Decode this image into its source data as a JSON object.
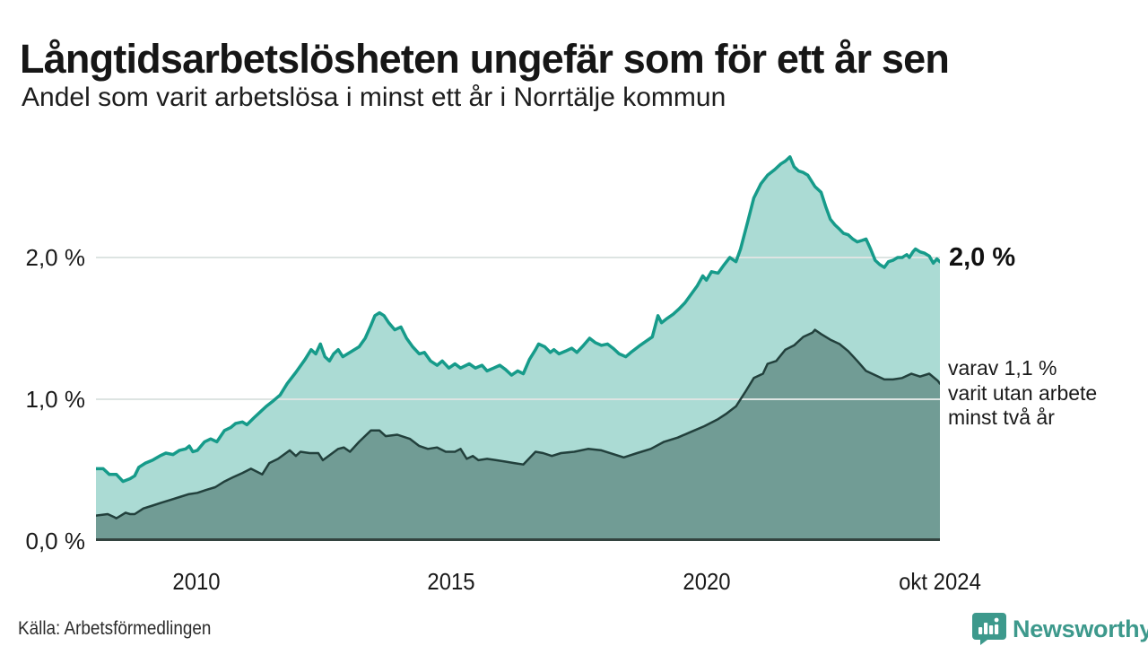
{
  "header": {
    "title": "Långtidsarbetslösheten ungefär som för ett år sen",
    "subtitle": "Andel som varit arbetslösa i minst ett år i Norrtälje kommun"
  },
  "chart_data": {
    "type": "area",
    "title": "Långtidsarbetslösheten ungefär som för ett år sen",
    "subtitle": "Andel som varit arbetslösa i minst ett år i Norrtälje kommun",
    "unit": "%",
    "x_domain": [
      2008.03,
      2024.58
    ],
    "ylim": [
      0,
      2.772
    ],
    "grid": "horizontal",
    "legend_position": "none",
    "yticks": [
      {
        "v": 2,
        "label": "2,0 %"
      },
      {
        "v": 1,
        "label": "1,0 %"
      },
      {
        "v": 0,
        "label": "0,0 %"
      }
    ],
    "xticks": [
      {
        "t": 2010,
        "label": "2010"
      },
      {
        "t": 2015,
        "label": "2015"
      },
      {
        "t": 2020,
        "label": "2020"
      },
      {
        "t": 2024.58,
        "label": "okt 2024"
      }
    ],
    "series": [
      {
        "name": "Andel arbetslösa minst ett år",
        "line_color": "#169b8a",
        "fill_color": "rgba(22,154,137,0.36)",
        "line_width": 3.5,
        "end_value": "2,0 %",
        "points": [
          [
            2008.03,
            0.51
          ],
          [
            2008.17,
            0.51
          ],
          [
            2008.29,
            0.47
          ],
          [
            2008.43,
            0.47
          ],
          [
            2008.56,
            0.42
          ],
          [
            2008.7,
            0.44
          ],
          [
            2008.79,
            0.46
          ],
          [
            2008.87,
            0.52
          ],
          [
            2009.0,
            0.55
          ],
          [
            2009.14,
            0.57
          ],
          [
            2009.28,
            0.6
          ],
          [
            2009.4,
            0.62
          ],
          [
            2009.54,
            0.61
          ],
          [
            2009.67,
            0.64
          ],
          [
            2009.79,
            0.65
          ],
          [
            2009.86,
            0.67
          ],
          [
            2009.93,
            0.63
          ],
          [
            2010.02,
            0.64
          ],
          [
            2010.16,
            0.7
          ],
          [
            2010.28,
            0.72
          ],
          [
            2010.4,
            0.7
          ],
          [
            2010.55,
            0.78
          ],
          [
            2010.67,
            0.8
          ],
          [
            2010.77,
            0.83
          ],
          [
            2010.9,
            0.84
          ],
          [
            2010.99,
            0.82
          ],
          [
            2011.13,
            0.87
          ],
          [
            2011.25,
            0.91
          ],
          [
            2011.37,
            0.95
          ],
          [
            2011.51,
            0.99
          ],
          [
            2011.64,
            1.03
          ],
          [
            2011.78,
            1.11
          ],
          [
            2011.95,
            1.19
          ],
          [
            2012.13,
            1.28
          ],
          [
            2012.25,
            1.35
          ],
          [
            2012.34,
            1.32
          ],
          [
            2012.43,
            1.39
          ],
          [
            2012.52,
            1.3
          ],
          [
            2012.61,
            1.27
          ],
          [
            2012.69,
            1.32
          ],
          [
            2012.78,
            1.35
          ],
          [
            2012.87,
            1.3
          ],
          [
            2013.01,
            1.33
          ],
          [
            2013.19,
            1.37
          ],
          [
            2013.31,
            1.43
          ],
          [
            2013.42,
            1.52
          ],
          [
            2013.5,
            1.59
          ],
          [
            2013.59,
            1.61
          ],
          [
            2013.68,
            1.59
          ],
          [
            2013.77,
            1.54
          ],
          [
            2013.89,
            1.49
          ],
          [
            2014.01,
            1.51
          ],
          [
            2014.12,
            1.43
          ],
          [
            2014.24,
            1.37
          ],
          [
            2014.37,
            1.32
          ],
          [
            2014.47,
            1.33
          ],
          [
            2014.59,
            1.27
          ],
          [
            2014.72,
            1.24
          ],
          [
            2014.82,
            1.27
          ],
          [
            2014.95,
            1.22
          ],
          [
            2015.07,
            1.25
          ],
          [
            2015.18,
            1.22
          ],
          [
            2015.35,
            1.25
          ],
          [
            2015.47,
            1.22
          ],
          [
            2015.6,
            1.24
          ],
          [
            2015.7,
            1.2
          ],
          [
            2015.83,
            1.22
          ],
          [
            2015.95,
            1.24
          ],
          [
            2016.06,
            1.21
          ],
          [
            2016.18,
            1.17
          ],
          [
            2016.3,
            1.2
          ],
          [
            2016.41,
            1.18
          ],
          [
            2016.53,
            1.28
          ],
          [
            2016.65,
            1.35
          ],
          [
            2016.71,
            1.39
          ],
          [
            2016.83,
            1.37
          ],
          [
            2016.94,
            1.33
          ],
          [
            2017.01,
            1.35
          ],
          [
            2017.11,
            1.32
          ],
          [
            2017.24,
            1.34
          ],
          [
            2017.36,
            1.36
          ],
          [
            2017.46,
            1.33
          ],
          [
            2017.59,
            1.38
          ],
          [
            2017.71,
            1.43
          ],
          [
            2017.82,
            1.4
          ],
          [
            2017.94,
            1.38
          ],
          [
            2018.06,
            1.39
          ],
          [
            2018.17,
            1.36
          ],
          [
            2018.29,
            1.32
          ],
          [
            2018.42,
            1.3
          ],
          [
            2018.52,
            1.33
          ],
          [
            2018.59,
            1.35
          ],
          [
            2018.7,
            1.38
          ],
          [
            2018.82,
            1.41
          ],
          [
            2018.94,
            1.44
          ],
          [
            2019.05,
            1.59
          ],
          [
            2019.12,
            1.54
          ],
          [
            2019.23,
            1.57
          ],
          [
            2019.35,
            1.6
          ],
          [
            2019.47,
            1.64
          ],
          [
            2019.58,
            1.68
          ],
          [
            2019.7,
            1.74
          ],
          [
            2019.82,
            1.8
          ],
          [
            2019.93,
            1.87
          ],
          [
            2020.0,
            1.84
          ],
          [
            2020.1,
            1.9
          ],
          [
            2020.23,
            1.89
          ],
          [
            2020.35,
            1.95
          ],
          [
            2020.46,
            2.0
          ],
          [
            2020.58,
            1.97
          ],
          [
            2020.67,
            2.06
          ],
          [
            2020.81,
            2.25
          ],
          [
            2020.93,
            2.42
          ],
          [
            2021.07,
            2.52
          ],
          [
            2021.2,
            2.58
          ],
          [
            2021.34,
            2.62
          ],
          [
            2021.46,
            2.66
          ],
          [
            2021.55,
            2.68
          ],
          [
            2021.64,
            2.71
          ],
          [
            2021.72,
            2.64
          ],
          [
            2021.81,
            2.61
          ],
          [
            2021.9,
            2.6
          ],
          [
            2021.99,
            2.58
          ],
          [
            2022.13,
            2.5
          ],
          [
            2022.25,
            2.46
          ],
          [
            2022.34,
            2.36
          ],
          [
            2022.43,
            2.27
          ],
          [
            2022.52,
            2.23
          ],
          [
            2022.61,
            2.2
          ],
          [
            2022.69,
            2.17
          ],
          [
            2022.78,
            2.16
          ],
          [
            2022.87,
            2.13
          ],
          [
            2022.96,
            2.11
          ],
          [
            2023.05,
            2.12
          ],
          [
            2023.13,
            2.13
          ],
          [
            2023.22,
            2.06
          ],
          [
            2023.31,
            1.98
          ],
          [
            2023.4,
            1.95
          ],
          [
            2023.49,
            1.93
          ],
          [
            2023.57,
            1.97
          ],
          [
            2023.66,
            1.98
          ],
          [
            2023.75,
            2.0
          ],
          [
            2023.84,
            2.0
          ],
          [
            2023.93,
            2.02
          ],
          [
            2023.98,
            2.0
          ],
          [
            2024.05,
            2.04
          ],
          [
            2024.1,
            2.06
          ],
          [
            2024.19,
            2.04
          ],
          [
            2024.28,
            2.03
          ],
          [
            2024.37,
            2.01
          ],
          [
            2024.45,
            1.96
          ],
          [
            2024.52,
            1.99
          ],
          [
            2024.58,
            1.97
          ]
        ]
      },
      {
        "name": "varav arbetslösa minst två år",
        "line_color": "#22403c",
        "fill_color": "rgba(18,52,47,0.38)",
        "line_width": 2.5,
        "end_value": "1,1 %",
        "points": [
          [
            2008.03,
            0.18
          ],
          [
            2008.26,
            0.19
          ],
          [
            2008.38,
            0.17
          ],
          [
            2008.43,
            0.16
          ],
          [
            2008.52,
            0.18
          ],
          [
            2008.61,
            0.2
          ],
          [
            2008.7,
            0.19
          ],
          [
            2008.79,
            0.19
          ],
          [
            2008.96,
            0.23
          ],
          [
            2009.14,
            0.25
          ],
          [
            2009.31,
            0.27
          ],
          [
            2009.49,
            0.29
          ],
          [
            2009.67,
            0.31
          ],
          [
            2009.84,
            0.33
          ],
          [
            2010.02,
            0.34
          ],
          [
            2010.19,
            0.36
          ],
          [
            2010.37,
            0.38
          ],
          [
            2010.55,
            0.42
          ],
          [
            2010.72,
            0.45
          ],
          [
            2010.9,
            0.48
          ],
          [
            2011.07,
            0.51
          ],
          [
            2011.29,
            0.47
          ],
          [
            2011.43,
            0.55
          ],
          [
            2011.6,
            0.58
          ],
          [
            2011.83,
            0.64
          ],
          [
            2011.95,
            0.6
          ],
          [
            2012.04,
            0.63
          ],
          [
            2012.22,
            0.62
          ],
          [
            2012.39,
            0.62
          ],
          [
            2012.48,
            0.57
          ],
          [
            2012.78,
            0.65
          ],
          [
            2012.89,
            0.66
          ],
          [
            2013.01,
            0.63
          ],
          [
            2013.19,
            0.7
          ],
          [
            2013.42,
            0.78
          ],
          [
            2013.59,
            0.78
          ],
          [
            2013.71,
            0.74
          ],
          [
            2013.94,
            0.75
          ],
          [
            2014.19,
            0.72
          ],
          [
            2014.37,
            0.67
          ],
          [
            2014.54,
            0.65
          ],
          [
            2014.72,
            0.66
          ],
          [
            2014.89,
            0.63
          ],
          [
            2015.07,
            0.63
          ],
          [
            2015.18,
            0.65
          ],
          [
            2015.3,
            0.58
          ],
          [
            2015.42,
            0.6
          ],
          [
            2015.53,
            0.57
          ],
          [
            2015.7,
            0.58
          ],
          [
            2015.88,
            0.57
          ],
          [
            2016.06,
            0.56
          ],
          [
            2016.23,
            0.55
          ],
          [
            2016.41,
            0.54
          ],
          [
            2016.65,
            0.63
          ],
          [
            2016.8,
            0.62
          ],
          [
            2016.97,
            0.6
          ],
          [
            2017.15,
            0.62
          ],
          [
            2017.41,
            0.63
          ],
          [
            2017.68,
            0.65
          ],
          [
            2017.94,
            0.64
          ],
          [
            2018.2,
            0.61
          ],
          [
            2018.38,
            0.59
          ],
          [
            2018.64,
            0.62
          ],
          [
            2018.91,
            0.65
          ],
          [
            2019.17,
            0.7
          ],
          [
            2019.44,
            0.73
          ],
          [
            2019.7,
            0.77
          ],
          [
            2019.96,
            0.81
          ],
          [
            2020.23,
            0.86
          ],
          [
            2020.4,
            0.9
          ],
          [
            2020.58,
            0.95
          ],
          [
            2020.76,
            1.05
          ],
          [
            2020.93,
            1.15
          ],
          [
            2021.11,
            1.18
          ],
          [
            2021.2,
            1.25
          ],
          [
            2021.37,
            1.27
          ],
          [
            2021.55,
            1.35
          ],
          [
            2021.72,
            1.38
          ],
          [
            2021.9,
            1.44
          ],
          [
            2022.08,
            1.47
          ],
          [
            2022.13,
            1.49
          ],
          [
            2022.25,
            1.46
          ],
          [
            2022.43,
            1.42
          ],
          [
            2022.61,
            1.39
          ],
          [
            2022.78,
            1.34
          ],
          [
            2022.96,
            1.27
          ],
          [
            2023.13,
            1.2
          ],
          [
            2023.31,
            1.17
          ],
          [
            2023.49,
            1.14
          ],
          [
            2023.66,
            1.14
          ],
          [
            2023.84,
            1.15
          ],
          [
            2024.02,
            1.18
          ],
          [
            2024.19,
            1.16
          ],
          [
            2024.37,
            1.18
          ],
          [
            2024.54,
            1.13
          ],
          [
            2024.58,
            1.11
          ]
        ]
      }
    ],
    "annotations": {
      "end_label": "2,0 %",
      "subset_line1": "varav 1,1 %",
      "subset_line2": "varit utan arbete",
      "subset_line3": "minst två år"
    }
  },
  "footer": {
    "source": "Källa: Arbetsförmedlingen",
    "brand": "Newsworthy"
  },
  "colors": {
    "grid": "#dde4e2",
    "baseline": "#33433f",
    "accent_teal": "#169b8a",
    "dark_series": "#22403c",
    "brand_teal": "#3d998c",
    "text": "#1a1a1a"
  }
}
